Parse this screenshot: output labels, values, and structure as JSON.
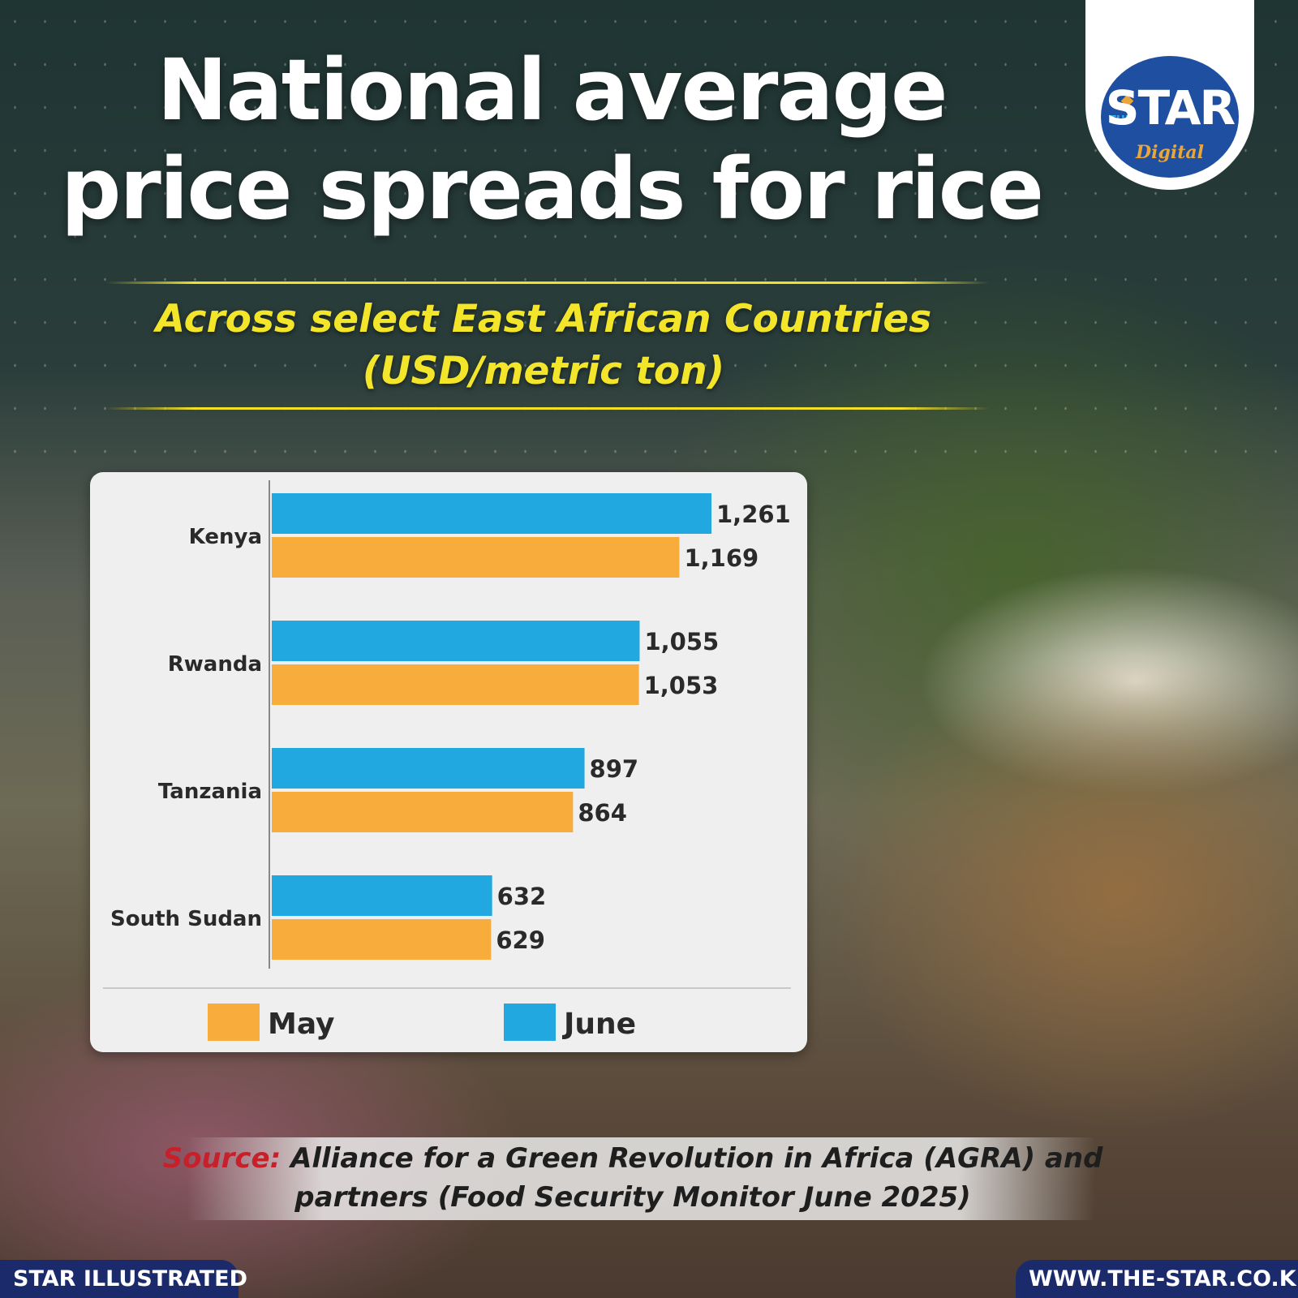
{
  "title": {
    "line1": "National average",
    "line2": "price spreads for rice"
  },
  "subtitle": {
    "line1": "Across select East African Countries",
    "line2": "(USD/metric ton)"
  },
  "logo": {
    "small": "THE",
    "main": "STAR",
    "sub": "Digital"
  },
  "colors": {
    "may": "#f8ac3c",
    "june": "#22a8e0",
    "title": "#ffffff",
    "subtitle": "#f3e52a",
    "footer": "#1b2a6b",
    "source_label": "#c8202b"
  },
  "chart_data": {
    "type": "bar",
    "orientation": "horizontal",
    "categories": [
      "Kenya",
      "Rwanda",
      "Tanzania",
      "South Sudan"
    ],
    "series": [
      {
        "name": "June",
        "values": [
          1261,
          1055,
          897,
          632
        ],
        "labels": [
          "1,261",
          "1,055",
          "897",
          "632"
        ]
      },
      {
        "name": "May",
        "values": [
          1169,
          1053,
          864,
          629
        ],
        "labels": [
          "1,169",
          "1,053",
          "864",
          "629"
        ]
      }
    ],
    "legend": {
      "position": "bottom",
      "entries": [
        "May",
        "June"
      ]
    },
    "grid": false
  },
  "source": {
    "label": "Source:",
    "line1": "Alliance for a Green Revolution in Africa (AGRA) and",
    "line2": "partners (Food Security Monitor June 2025)"
  },
  "footer": {
    "left": "STAR ILLUSTRATED",
    "right": "WWW.THE-STAR.CO.KE"
  }
}
